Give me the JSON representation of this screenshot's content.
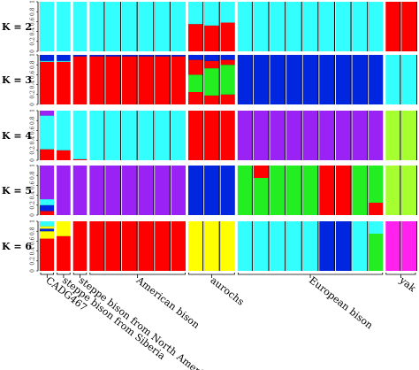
{
  "chart_data": {
    "type": "bar",
    "stacked": true,
    "ylim": [
      0,
      1
    ],
    "yticks": [
      "0",
      "0.2",
      "0.4",
      "0.6",
      "0.8",
      "1"
    ],
    "palette": {
      "red": "#ff0000",
      "cyan": "#33ffff",
      "blue": "#0026e0",
      "green": "#22ee22",
      "purple": "#9a22f5",
      "yellow": "#ffff00",
      "lime": "#a6ff2e",
      "magenta": "#ff22ee",
      "black": "#111111"
    },
    "sample_groups": [
      {
        "label": "CADG467",
        "size": 1
      },
      {
        "label": "steppe bison from Siberia",
        "size": 1
      },
      {
        "label": "steppe bison from North America",
        "size": 1
      },
      {
        "label": "American bison",
        "size": 6
      },
      {
        "label": "aurochs",
        "size": 3
      },
      {
        "label": "European bison",
        "size": 9
      },
      {
        "label": "yak",
        "size": 2
      }
    ],
    "panels": [
      {
        "label": "K = 2",
        "columns": [
          [
            [
              "cyan",
              1
            ]
          ],
          [
            [
              "cyan",
              1
            ]
          ],
          [
            [
              "cyan",
              1
            ]
          ],
          [
            [
              "cyan",
              1
            ]
          ],
          [
            [
              "cyan",
              1
            ]
          ],
          [
            [
              "cyan",
              1
            ]
          ],
          [
            [
              "cyan",
              1
            ]
          ],
          [
            [
              "cyan",
              1
            ]
          ],
          [
            [
              "cyan",
              1
            ]
          ],
          [
            [
              "red",
              0.55
            ],
            [
              "cyan",
              0.45
            ]
          ],
          [
            [
              "red",
              0.52
            ],
            [
              "cyan",
              0.48
            ]
          ],
          [
            [
              "red",
              0.58
            ],
            [
              "cyan",
              0.42
            ]
          ],
          [
            [
              "cyan",
              1
            ]
          ],
          [
            [
              "cyan",
              1
            ]
          ],
          [
            [
              "cyan",
              1
            ]
          ],
          [
            [
              "cyan",
              1
            ]
          ],
          [
            [
              "cyan",
              1
            ]
          ],
          [
            [
              "cyan",
              1
            ]
          ],
          [
            [
              "cyan",
              1
            ]
          ],
          [
            [
              "cyan",
              1
            ]
          ],
          [
            [
              "cyan",
              1
            ]
          ],
          [
            [
              "red",
              1
            ]
          ],
          [
            [
              "red",
              1
            ]
          ]
        ]
      },
      {
        "label": "K = 3",
        "columns": [
          [
            [
              "red",
              0.86
            ],
            [
              "cyan",
              0.02
            ],
            [
              "blue",
              0.12
            ]
          ],
          [
            [
              "red",
              0.86
            ],
            [
              "cyan",
              0.02
            ],
            [
              "blue",
              0.12
            ]
          ],
          [
            [
              "red",
              0.97
            ],
            [
              "blue",
              0.03
            ]
          ],
          [
            [
              "red",
              0.97
            ],
            [
              "blue",
              0.03
            ]
          ],
          [
            [
              "red",
              0.97
            ],
            [
              "blue",
              0.03
            ]
          ],
          [
            [
              "red",
              0.97
            ],
            [
              "blue",
              0.03
            ]
          ],
          [
            [
              "red",
              0.97
            ],
            [
              "blue",
              0.03
            ]
          ],
          [
            [
              "red",
              0.97
            ],
            [
              "blue",
              0.03
            ]
          ],
          [
            [
              "red",
              0.97
            ],
            [
              "blue",
              0.03
            ]
          ],
          [
            [
              "red",
              0.25
            ],
            [
              "green",
              0.35
            ],
            [
              "red",
              0.3
            ],
            [
              "blue",
              0.1
            ]
          ],
          [
            [
              "red",
              0.18
            ],
            [
              "green",
              0.55
            ],
            [
              "red",
              0.15
            ],
            [
              "blue",
              0.12
            ]
          ],
          [
            [
              "red",
              0.2
            ],
            [
              "green",
              0.6
            ],
            [
              "red",
              0.1
            ],
            [
              "blue",
              0.1
            ]
          ],
          [
            [
              "blue",
              1
            ]
          ],
          [
            [
              "blue",
              1
            ]
          ],
          [
            [
              "blue",
              1
            ]
          ],
          [
            [
              "blue",
              1
            ]
          ],
          [
            [
              "blue",
              1
            ]
          ],
          [
            [
              "blue",
              1
            ]
          ],
          [
            [
              "blue",
              1
            ]
          ],
          [
            [
              "blue",
              1
            ]
          ],
          [
            [
              "blue",
              1
            ]
          ],
          [
            [
              "cyan",
              1
            ]
          ],
          [
            [
              "cyan",
              1
            ]
          ]
        ]
      },
      {
        "label": "K = 4",
        "columns": [
          [
            [
              "red",
              0.22
            ],
            [
              "cyan",
              0.68
            ],
            [
              "purple",
              0.1
            ]
          ],
          [
            [
              "red",
              0.2
            ],
            [
              "cyan",
              0.8
            ]
          ],
          [
            [
              "red",
              0.02
            ],
            [
              "cyan",
              0.98
            ]
          ],
          [
            [
              "cyan",
              1
            ]
          ],
          [
            [
              "cyan",
              1
            ]
          ],
          [
            [
              "cyan",
              1
            ]
          ],
          [
            [
              "cyan",
              1
            ]
          ],
          [
            [
              "cyan",
              1
            ]
          ],
          [
            [
              "cyan",
              1
            ]
          ],
          [
            [
              "red",
              1
            ]
          ],
          [
            [
              "red",
              1
            ]
          ],
          [
            [
              "red",
              1
            ]
          ],
          [
            [
              "purple",
              1
            ]
          ],
          [
            [
              "purple",
              1
            ]
          ],
          [
            [
              "purple",
              1
            ]
          ],
          [
            [
              "purple",
              1
            ]
          ],
          [
            [
              "purple",
              1
            ]
          ],
          [
            [
              "purple",
              1
            ]
          ],
          [
            [
              "purple",
              1
            ]
          ],
          [
            [
              "purple",
              1
            ]
          ],
          [
            [
              "purple",
              1
            ]
          ],
          [
            [
              "lime",
              1
            ]
          ],
          [
            [
              "lime",
              1
            ]
          ]
        ]
      },
      {
        "label": "K = 5",
        "columns": [
          [
            [
              "red",
              0.08
            ],
            [
              "blue",
              0.12
            ],
            [
              "cyan",
              0.12
            ],
            [
              "purple",
              0.68
            ]
          ],
          [
            [
              "purple",
              1
            ]
          ],
          [
            [
              "purple",
              1
            ]
          ],
          [
            [
              "purple",
              1
            ]
          ],
          [
            [
              "purple",
              1
            ]
          ],
          [
            [
              "purple",
              1
            ]
          ],
          [
            [
              "purple",
              1
            ]
          ],
          [
            [
              "purple",
              1
            ]
          ],
          [
            [
              "purple",
              1
            ]
          ],
          [
            [
              "blue",
              1
            ]
          ],
          [
            [
              "blue",
              1
            ]
          ],
          [
            [
              "blue",
              1
            ]
          ],
          [
            [
              "green",
              1
            ]
          ],
          [
            [
              "green",
              0.75
            ],
            [
              "red",
              0.25
            ]
          ],
          [
            [
              "green",
              1
            ]
          ],
          [
            [
              "green",
              1
            ]
          ],
          [
            [
              "green",
              1
            ]
          ],
          [
            [
              "red",
              1
            ]
          ],
          [
            [
              "red",
              1
            ]
          ],
          [
            [
              "green",
              1
            ]
          ],
          [
            [
              "red",
              0.25
            ],
            [
              "green",
              0.75
            ]
          ],
          [
            [
              "lime",
              1
            ]
          ],
          [
            [
              "lime",
              1
            ]
          ]
        ]
      },
      {
        "label": "K = 6",
        "columns": [
          [
            [
              "red",
              0.65
            ],
            [
              "yellow",
              0.15
            ],
            [
              "blue",
              0.05
            ],
            [
              "yellow",
              0.05
            ],
            [
              "cyan",
              0.1
            ]
          ],
          [
            [
              "red",
              0.7
            ],
            [
              "yellow",
              0.3
            ]
          ],
          [
            [
              "red",
              1
            ]
          ],
          [
            [
              "red",
              1
            ]
          ],
          [
            [
              "red",
              1
            ]
          ],
          [
            [
              "red",
              1
            ]
          ],
          [
            [
              "red",
              1
            ]
          ],
          [
            [
              "red",
              1
            ]
          ],
          [
            [
              "red",
              1
            ]
          ],
          [
            [
              "yellow",
              1
            ]
          ],
          [
            [
              "yellow",
              1
            ]
          ],
          [
            [
              "yellow",
              1
            ]
          ],
          [
            [
              "cyan",
              1
            ]
          ],
          [
            [
              "cyan",
              1
            ]
          ],
          [
            [
              "cyan",
              1
            ]
          ],
          [
            [
              "cyan",
              1
            ]
          ],
          [
            [
              "cyan",
              1
            ]
          ],
          [
            [
              "blue",
              1
            ]
          ],
          [
            [
              "blue",
              1
            ]
          ],
          [
            [
              "cyan",
              1
            ]
          ],
          [
            [
              "green",
              0.75
            ],
            [
              "cyan",
              0.25
            ]
          ],
          [
            [
              "magenta",
              1
            ]
          ],
          [
            [
              "magenta",
              1
            ]
          ]
        ]
      }
    ]
  }
}
